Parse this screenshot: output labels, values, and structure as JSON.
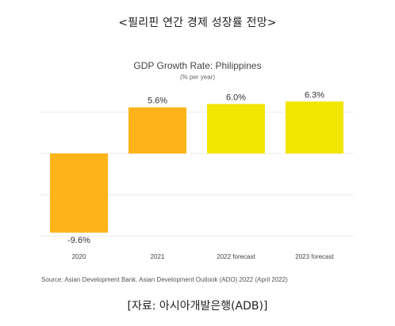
{
  "page": {
    "title": "<필리핀 연간 경제 성장률 전망>",
    "source": "Source: Asian Development Bank. Asian Development Outlook (ADO) 2022 (April 2022)",
    "caption": "[자료: 아시아개발은행(ADB)]"
  },
  "chart_data": {
    "type": "bar",
    "title": "GDP Growth Rate: Philippines",
    "subtitle": "(% per year)",
    "categories": [
      "2020",
      "2021",
      "2022 forecast",
      "2023 forecast"
    ],
    "values": [
      -9.6,
      5.6,
      6.0,
      6.3
    ],
    "value_labels": [
      "-9.6%",
      "5.6%",
      "6.0%",
      "6.3%"
    ],
    "colors": [
      "#FFB31A",
      "#FFB31A",
      "#F2E600",
      "#F2E600"
    ],
    "ylim": [
      -12,
      8
    ],
    "grid": true,
    "xlabel": "",
    "ylabel": ""
  }
}
